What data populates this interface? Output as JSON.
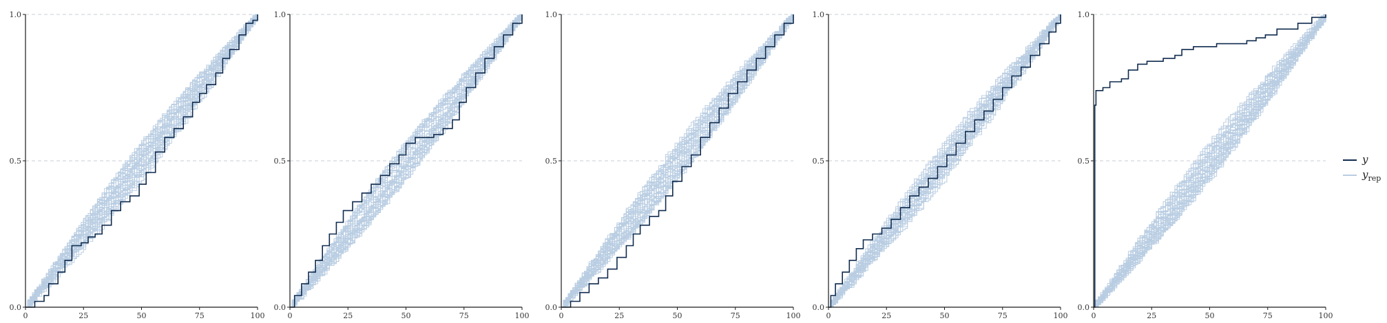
{
  "chart_data": {
    "type": "line",
    "description_kind": "empirical CDF (ecdf) posterior predictive check, 5 panels",
    "colors": {
      "y": "#0f2a4d",
      "y_rep": "#b9cde2",
      "grid": "#c8cdd3",
      "axis": "#1a1a1a"
    },
    "legend": {
      "placement": "right",
      "entries": [
        {
          "name": "y",
          "sub": "",
          "color": "#0f2a4d"
        },
        {
          "name": "y",
          "sub": "rep",
          "color": "#b9cde2"
        }
      ]
    },
    "panels": [
      {
        "xlim": [
          0,
          100
        ],
        "ylim": [
          0,
          1
        ],
        "xticks": [
          "0",
          "25",
          "50",
          "75",
          "100"
        ],
        "yticks": [
          "0.0",
          "0.5",
          "1.0"
        ],
        "grid_y": [
          0.5,
          1.0
        ],
        "y_shape": "linear",
        "y_points": [
          [
            0,
            0
          ],
          [
            4,
            0.02
          ],
          [
            8,
            0.04
          ],
          [
            10,
            0.08
          ],
          [
            14,
            0.12
          ],
          [
            17,
            0.16
          ],
          [
            20,
            0.21
          ],
          [
            24,
            0.22
          ],
          [
            27,
            0.24
          ],
          [
            30,
            0.25
          ],
          [
            33,
            0.28
          ],
          [
            37,
            0.33
          ],
          [
            41,
            0.36
          ],
          [
            45,
            0.38
          ],
          [
            49,
            0.42
          ],
          [
            52,
            0.46
          ],
          [
            56,
            0.53
          ],
          [
            60,
            0.58
          ],
          [
            64,
            0.61
          ],
          [
            68,
            0.65
          ],
          [
            72,
            0.7
          ],
          [
            75,
            0.73
          ],
          [
            78,
            0.76
          ],
          [
            82,
            0.8
          ],
          [
            85,
            0.85
          ],
          [
            88,
            0.88
          ],
          [
            92,
            0.93
          ],
          [
            95,
            0.97
          ],
          [
            98,
            0.98
          ],
          [
            100,
            1.0
          ]
        ]
      },
      {
        "xlim": [
          0,
          100
        ],
        "ylim": [
          0,
          1
        ],
        "xticks": [
          "0",
          "25",
          "50",
          "75",
          "100"
        ],
        "yticks": [
          "0.0",
          "0.5",
          "1.0"
        ],
        "grid_y": [
          0.5,
          1.0
        ],
        "y_shape": "linear",
        "y_points": [
          [
            0,
            0
          ],
          [
            2,
            0.04
          ],
          [
            5,
            0.08
          ],
          [
            8,
            0.12
          ],
          [
            11,
            0.16
          ],
          [
            14,
            0.21
          ],
          [
            17,
            0.25
          ],
          [
            20,
            0.29
          ],
          [
            23,
            0.33
          ],
          [
            27,
            0.36
          ],
          [
            31,
            0.39
          ],
          [
            35,
            0.42
          ],
          [
            39,
            0.45
          ],
          [
            43,
            0.49
          ],
          [
            47,
            0.52
          ],
          [
            50,
            0.56
          ],
          [
            54,
            0.58
          ],
          [
            58,
            0.58
          ],
          [
            62,
            0.59
          ],
          [
            66,
            0.61
          ],
          [
            70,
            0.64
          ],
          [
            73,
            0.7
          ],
          [
            76,
            0.75
          ],
          [
            80,
            0.8
          ],
          [
            84,
            0.85
          ],
          [
            88,
            0.89
          ],
          [
            92,
            0.93
          ],
          [
            96,
            0.97
          ],
          [
            100,
            1.0
          ]
        ]
      },
      {
        "xlim": [
          0,
          100
        ],
        "ylim": [
          0,
          1
        ],
        "xticks": [
          "0",
          "25",
          "50",
          "75",
          "100"
        ],
        "yticks": [
          "0.0",
          "0.5",
          "1.0"
        ],
        "grid_y": [
          0.5,
          1.0
        ],
        "y_shape": "linear",
        "y_points": [
          [
            0,
            0
          ],
          [
            4,
            0.02
          ],
          [
            8,
            0.05
          ],
          [
            12,
            0.08
          ],
          [
            16,
            0.1
          ],
          [
            20,
            0.13
          ],
          [
            24,
            0.17
          ],
          [
            28,
            0.21
          ],
          [
            31,
            0.25
          ],
          [
            34,
            0.28
          ],
          [
            38,
            0.31
          ],
          [
            42,
            0.33
          ],
          [
            45,
            0.38
          ],
          [
            48,
            0.43
          ],
          [
            52,
            0.48
          ],
          [
            56,
            0.52
          ],
          [
            60,
            0.58
          ],
          [
            64,
            0.63
          ],
          [
            68,
            0.68
          ],
          [
            72,
            0.73
          ],
          [
            76,
            0.77
          ],
          [
            80,
            0.81
          ],
          [
            84,
            0.85
          ],
          [
            88,
            0.89
          ],
          [
            92,
            0.93
          ],
          [
            96,
            0.97
          ],
          [
            100,
            1.0
          ]
        ]
      },
      {
        "xlim": [
          0,
          100
        ],
        "ylim": [
          0,
          1
        ],
        "xticks": [
          "0",
          "25",
          "50",
          "75",
          "100"
        ],
        "yticks": [
          "0.0",
          "0.5",
          "1.0"
        ],
        "grid_y": [
          0.5,
          1.0
        ],
        "y_shape": "linear",
        "y_points": [
          [
            0,
            0
          ],
          [
            1,
            0.04
          ],
          [
            3,
            0.08
          ],
          [
            6,
            0.12
          ],
          [
            9,
            0.16
          ],
          [
            12,
            0.2
          ],
          [
            15,
            0.23
          ],
          [
            19,
            0.25
          ],
          [
            23,
            0.27
          ],
          [
            27,
            0.3
          ],
          [
            31,
            0.34
          ],
          [
            35,
            0.38
          ],
          [
            39,
            0.41
          ],
          [
            43,
            0.44
          ],
          [
            47,
            0.48
          ],
          [
            51,
            0.52
          ],
          [
            55,
            0.56
          ],
          [
            59,
            0.6
          ],
          [
            63,
            0.64
          ],
          [
            67,
            0.67
          ],
          [
            71,
            0.71
          ],
          [
            75,
            0.75
          ],
          [
            79,
            0.79
          ],
          [
            83,
            0.82
          ],
          [
            87,
            0.86
          ],
          [
            91,
            0.9
          ],
          [
            95,
            0.94
          ],
          [
            98,
            0.97
          ],
          [
            100,
            1.0
          ]
        ]
      },
      {
        "xlim": [
          0,
          100
        ],
        "ylim": [
          0,
          1
        ],
        "xticks": [
          "0",
          "25",
          "50",
          "75",
          "100"
        ],
        "yticks": [
          "0.0",
          "0.5",
          "1.0"
        ],
        "grid_y": [
          0.5,
          1.0
        ],
        "y_shape": "skewed",
        "y_points": [
          [
            0,
            0
          ],
          [
            0.5,
            0.69
          ],
          [
            1,
            0.74
          ],
          [
            4,
            0.75
          ],
          [
            7,
            0.77
          ],
          [
            12,
            0.78
          ],
          [
            15,
            0.81
          ],
          [
            19,
            0.83
          ],
          [
            23,
            0.84
          ],
          [
            30,
            0.85
          ],
          [
            35,
            0.86
          ],
          [
            38,
            0.88
          ],
          [
            43,
            0.89
          ],
          [
            53,
            0.9
          ],
          [
            66,
            0.91
          ],
          [
            70,
            0.92
          ],
          [
            74,
            0.93
          ],
          [
            79,
            0.95
          ],
          [
            88,
            0.97
          ],
          [
            94,
            0.99
          ],
          [
            100,
            1.0
          ]
        ]
      }
    ]
  }
}
